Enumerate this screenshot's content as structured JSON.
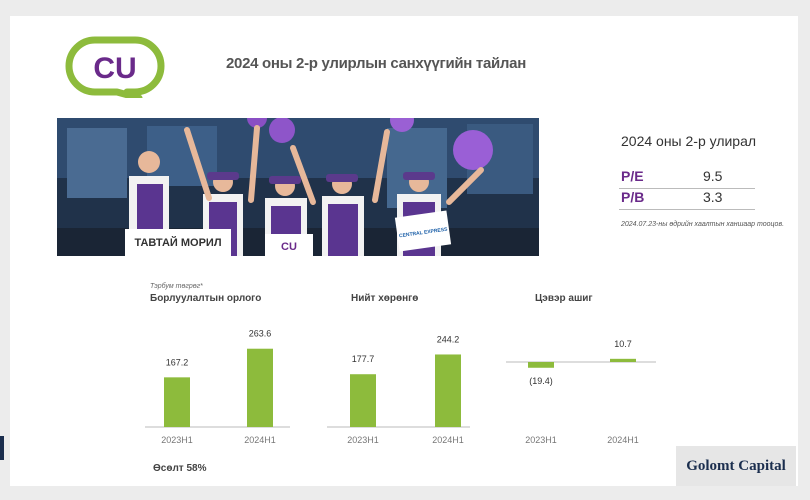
{
  "header": {
    "logo_text": "CU",
    "title": "2024 оны 2-р улирлын санхүүгийн тайлан"
  },
  "photo": {
    "banner_text": "ТАВТАЙ МОРИЛ",
    "sign_logo": "CU",
    "sign_text": "CENTRAL EXPRESS"
  },
  "valuation": {
    "title": "2024 оны 2-р улирал",
    "rows": [
      {
        "label": "P/E",
        "value": "9.5"
      },
      {
        "label": "P/B",
        "value": "3.3"
      }
    ],
    "note": "2024.07.23-ны өдрийн хаалтын ханшаар тооцов."
  },
  "unit_label": "Тэрбум төгрөг*",
  "growth_text": "Өсөлт 58%",
  "brand": "Golomt Capital",
  "colors": {
    "bar": "#8dbb3c",
    "accent": "#6a2a8a",
    "brand": "#1b2e4e"
  },
  "chart_data": [
    {
      "type": "bar",
      "title": "Борлуулалтын орлого",
      "categories": [
        "2023H1",
        "2024H1"
      ],
      "values": [
        167.2,
        263.6
      ],
      "labels": [
        "167.2",
        "263.6"
      ]
    },
    {
      "type": "bar",
      "title": "Нийт хөрөнгө",
      "categories": [
        "2023H1",
        "2024H1"
      ],
      "values": [
        177.7,
        244.2
      ],
      "labels": [
        "177.7",
        "244.2"
      ]
    },
    {
      "type": "bar",
      "title": "Цэвэр ашиг",
      "categories": [
        "2023H1",
        "2024H1"
      ],
      "values": [
        -19.4,
        10.7
      ],
      "labels": [
        "(19.4)",
        "10.7"
      ]
    }
  ]
}
